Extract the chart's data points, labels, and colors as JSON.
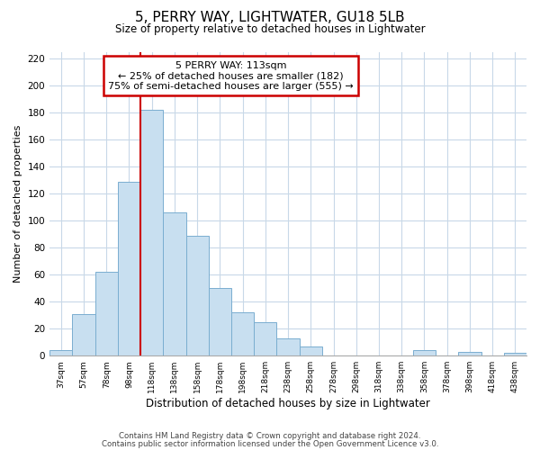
{
  "title": "5, PERRY WAY, LIGHTWATER, GU18 5LB",
  "subtitle": "Size of property relative to detached houses in Lightwater",
  "xlabel": "Distribution of detached houses by size in Lightwater",
  "ylabel": "Number of detached properties",
  "bar_color": "#c8dff0",
  "bar_edge_color": "#7aaed0",
  "bin_labels": [
    "37sqm",
    "57sqm",
    "78sqm",
    "98sqm",
    "118sqm",
    "138sqm",
    "158sqm",
    "178sqm",
    "198sqm",
    "218sqm",
    "238sqm",
    "258sqm",
    "278sqm",
    "298sqm",
    "318sqm",
    "338sqm",
    "358sqm",
    "378sqm",
    "398sqm",
    "418sqm",
    "438sqm"
  ],
  "bar_heights": [
    4,
    31,
    62,
    129,
    182,
    106,
    89,
    50,
    32,
    25,
    13,
    7,
    0,
    0,
    0,
    0,
    4,
    0,
    3,
    0,
    2
  ],
  "ylim": [
    0,
    225
  ],
  "yticks": [
    0,
    20,
    40,
    60,
    80,
    100,
    120,
    140,
    160,
    180,
    200,
    220
  ],
  "vline_x_index": 4,
  "vline_color": "#cc0000",
  "annotation_text": "5 PERRY WAY: 113sqm\n← 25% of detached houses are smaller (182)\n75% of semi-detached houses are larger (555) →",
  "footer_line1": "Contains HM Land Registry data © Crown copyright and database right 2024.",
  "footer_line2": "Contains public sector information licensed under the Open Government Licence v3.0.",
  "background_color": "#ffffff",
  "grid_color": "#c8d8e8"
}
